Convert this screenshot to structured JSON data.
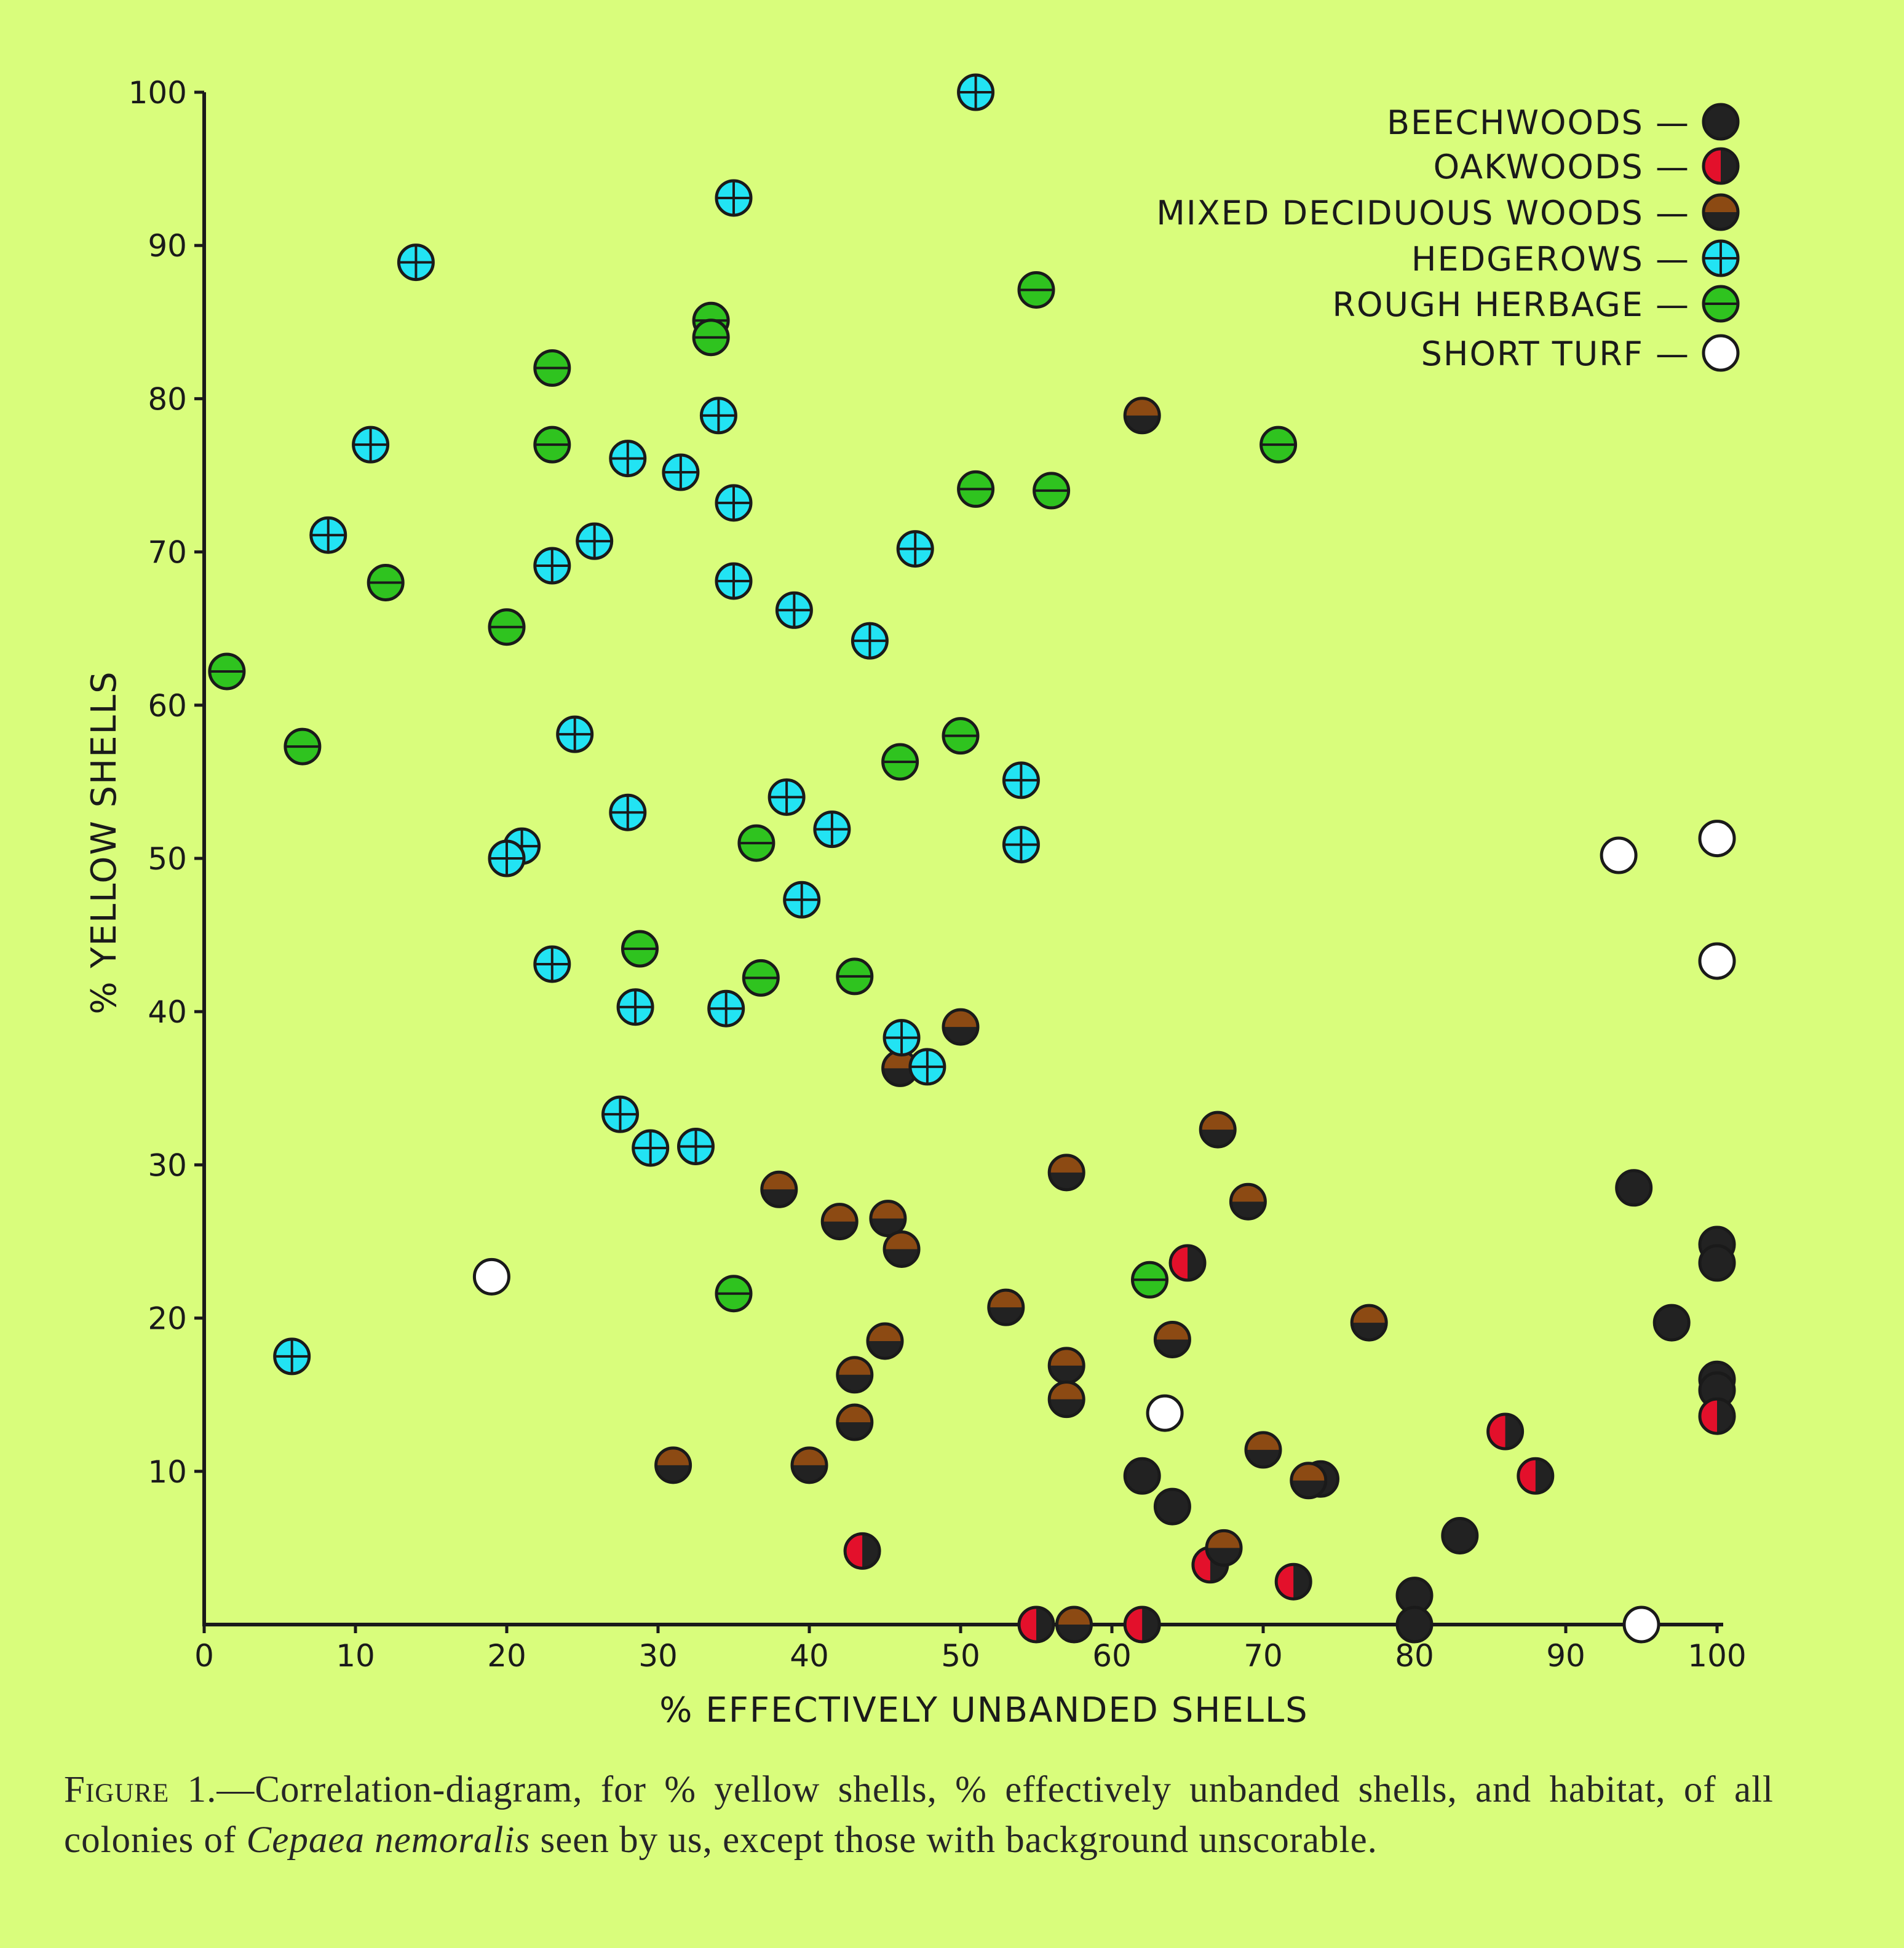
{
  "chart_data": {
    "type": "scatter",
    "xlabel": "% EFFECTIVELY UNBANDED SHELLS",
    "ylabel": "% YELLOW SHELLS",
    "xlim": [
      0,
      100
    ],
    "ylim": [
      0,
      100
    ],
    "xticks": [
      "0",
      "10",
      "20",
      "30",
      "40",
      "50",
      "60",
      "70",
      "80",
      "90",
      "100"
    ],
    "yticks": [
      "10",
      "20",
      "30",
      "40",
      "50",
      "60",
      "70",
      "80",
      "90",
      "100"
    ],
    "legend_position": "top-right",
    "series": [
      {
        "name": "BEECHWOODS",
        "symbol": "beech",
        "points": [
          [
            94.5,
            28.5
          ],
          [
            100,
            24.8
          ],
          [
            100,
            23.6
          ],
          [
            97,
            19.7
          ],
          [
            100,
            16
          ],
          [
            100,
            15.3
          ],
          [
            83,
            5.8
          ],
          [
            80,
            1.9
          ],
          [
            80,
            0
          ],
          [
            73.8,
            9.5
          ],
          [
            62,
            9.7
          ],
          [
            64,
            7.7
          ]
        ]
      },
      {
        "name": "OAKWOODS",
        "symbol": "oak",
        "points": [
          [
            65,
            23.6
          ],
          [
            86,
            12.6
          ],
          [
            88,
            9.7
          ],
          [
            100,
            13.6
          ],
          [
            43.5,
            4.8
          ],
          [
            66.5,
            3.9
          ],
          [
            72,
            2.8
          ],
          [
            55,
            0
          ],
          [
            62,
            0
          ]
        ]
      },
      {
        "name": "MIXED DECIDUOUS WOODS",
        "symbol": "mixed",
        "points": [
          [
            62,
            78.9
          ],
          [
            50,
            39
          ],
          [
            46,
            36.3
          ],
          [
            67,
            32.3
          ],
          [
            57,
            29.5
          ],
          [
            69,
            27.6
          ],
          [
            38,
            28.4
          ],
          [
            42,
            26.3
          ],
          [
            45.2,
            26.5
          ],
          [
            46.1,
            24.5
          ],
          [
            53,
            20.7
          ],
          [
            77,
            19.7
          ],
          [
            64,
            18.6
          ],
          [
            45,
            18.5
          ],
          [
            57,
            16.9
          ],
          [
            57,
            14.7
          ],
          [
            43,
            16.3
          ],
          [
            43,
            13.2
          ],
          [
            31,
            10.4
          ],
          [
            40,
            10.4
          ],
          [
            70,
            11.4
          ],
          [
            73,
            9.4
          ],
          [
            67.4,
            5
          ],
          [
            57.5,
            0
          ]
        ]
      },
      {
        "name": "HEDGEROWS",
        "symbol": "hedge",
        "points": [
          [
            51,
            100
          ],
          [
            35,
            93.1
          ],
          [
            14,
            88.9
          ],
          [
            34,
            78.9
          ],
          [
            11,
            77
          ],
          [
            28,
            76.1
          ],
          [
            31.5,
            75.2
          ],
          [
            35,
            73.2
          ],
          [
            8.2,
            71.1
          ],
          [
            25.8,
            70.7
          ],
          [
            23,
            69.1
          ],
          [
            47,
            70.2
          ],
          [
            35,
            68.1
          ],
          [
            39,
            66.2
          ],
          [
            44,
            64.2
          ],
          [
            24.5,
            58.1
          ],
          [
            54,
            55.1
          ],
          [
            38.5,
            54
          ],
          [
            41.5,
            51.9
          ],
          [
            28,
            53
          ],
          [
            54,
            50.9
          ],
          [
            21,
            50.8
          ],
          [
            20,
            50
          ],
          [
            39.5,
            47.3
          ],
          [
            23,
            43.1
          ],
          [
            28.5,
            40.3
          ],
          [
            34.5,
            40.2
          ],
          [
            46.1,
            38.3
          ],
          [
            47.8,
            36.4
          ],
          [
            27.5,
            33.3
          ],
          [
            29.5,
            31.1
          ],
          [
            32.5,
            31.2
          ],
          [
            5.8,
            17.5
          ]
        ]
      },
      {
        "name": "ROUGH HERBAGE",
        "symbol": "rough",
        "points": [
          [
            33.5,
            85.1
          ],
          [
            33.5,
            84
          ],
          [
            55,
            87.1
          ],
          [
            23,
            82
          ],
          [
            23,
            77
          ],
          [
            71,
            77
          ],
          [
            51,
            74.1
          ],
          [
            56,
            74
          ],
          [
            12,
            68
          ],
          [
            20,
            65.1
          ],
          [
            1.5,
            62.2
          ],
          [
            6.5,
            57.3
          ],
          [
            50,
            58
          ],
          [
            46,
            56.3
          ],
          [
            36.5,
            51
          ],
          [
            28.8,
            44.1
          ],
          [
            36.8,
            42.2
          ],
          [
            43,
            42.3
          ],
          [
            35,
            21.6
          ],
          [
            62.5,
            22.5
          ]
        ]
      },
      {
        "name": "SHORT TURF",
        "symbol": "turf",
        "points": [
          [
            19,
            22.7
          ],
          [
            63.5,
            13.8
          ],
          [
            93.5,
            50.2
          ],
          [
            100,
            51.3
          ],
          [
            100,
            43.3
          ],
          [
            95,
            0
          ]
        ]
      }
    ]
  },
  "legend": [
    {
      "label": "BEECHWOODS —",
      "symbol": "beech"
    },
    {
      "label": "OAKWOODS —",
      "symbol": "oak"
    },
    {
      "label": "MIXED DECIDUOUS WOODS —",
      "symbol": "mixed"
    },
    {
      "label": "HEDGEROWS —",
      "symbol": "hedge"
    },
    {
      "label": "ROUGH HERBAGE —",
      "symbol": "rough"
    },
    {
      "label": "SHORT TURF —",
      "symbol": "turf"
    }
  ],
  "caption": {
    "lead": "Figure 1.",
    "part1": "—Correlation-diagram, for % yellow shells, % effectively unbanded shells, and habitat, of all colonies of ",
    "species": "Cepaea nemoralis",
    "part2": " seen by us, except those with background unscorable."
  },
  "colors": {
    "background": "#d9fd7c",
    "ink": "#1a1a1a",
    "beech": "#222222",
    "oak_red": "#e3102b",
    "mixed_brown": "#8c4a13",
    "hedge_cyan": "#22e3f3",
    "rough_green": "#2fc31f",
    "turf_white": "#ffffff"
  }
}
